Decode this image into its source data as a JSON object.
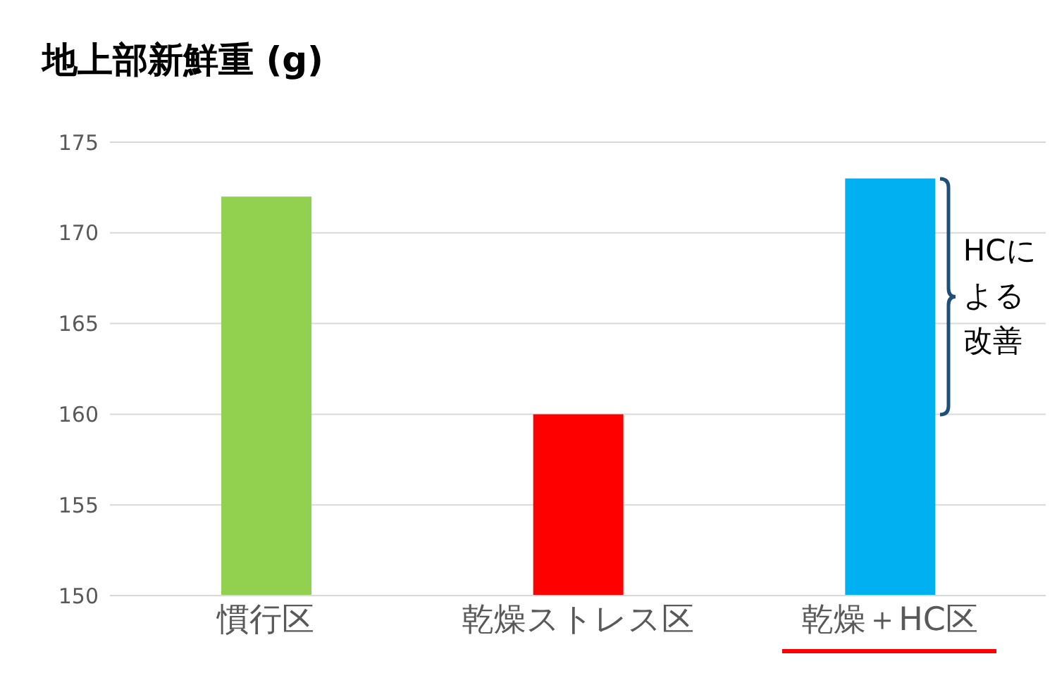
{
  "chart_data": {
    "type": "bar",
    "title": "地上部新鮮重 (g)",
    "categories": [
      "慣行区",
      "乾燥ストレス区",
      "乾燥＋HC区"
    ],
    "values": [
      172,
      160,
      173
    ],
    "colors": [
      "#92d050",
      "#ff0000",
      "#00b0f0"
    ],
    "ylim": [
      150,
      175
    ],
    "yticks": [
      150,
      155,
      160,
      165,
      170,
      175
    ],
    "grid": "y",
    "annotations": [
      "HCによる改善"
    ]
  }
}
